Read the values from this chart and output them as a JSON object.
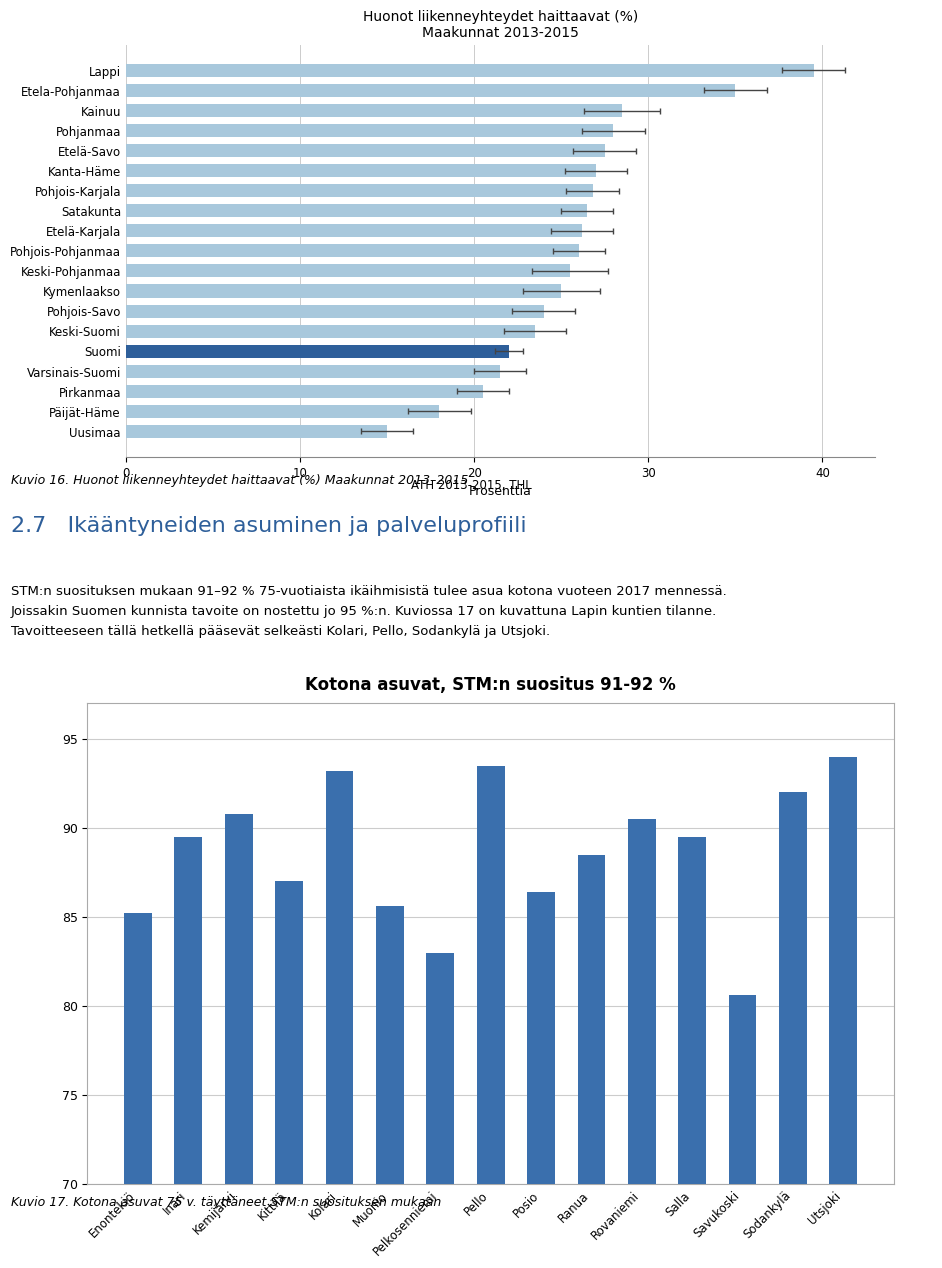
{
  "chart1": {
    "title": "Huonot liikenneyhteydet haittaavat (%)\nMaakunnat 2013-2015",
    "categories": [
      "Lappi",
      "Etela-Pohjanmaa",
      "Kainuu",
      "Pohjanmaa",
      "Etelä-Savo",
      "Kanta-Häme",
      "Pohjois-Karjala",
      "Satakunta",
      "Etelä-Karjala",
      "Pohjois-Pohjanmaa",
      "Keski-Pohjanmaa",
      "Kymenlaakso",
      "Pohjois-Savo",
      "Keski-Suomi",
      "Suomi",
      "Varsinais-Suomi",
      "Pirkanmaa",
      "Päijät-Häme",
      "Uusimaa"
    ],
    "values": [
      39.5,
      35.0,
      28.5,
      28.0,
      27.5,
      27.0,
      26.8,
      26.5,
      26.2,
      26.0,
      25.5,
      25.0,
      24.0,
      23.5,
      22.0,
      21.5,
      20.5,
      18.0,
      15.0
    ],
    "errors": [
      1.8,
      1.8,
      2.2,
      1.8,
      1.8,
      1.8,
      1.5,
      1.5,
      1.8,
      1.5,
      2.2,
      2.2,
      1.8,
      1.8,
      0.8,
      1.5,
      1.5,
      1.8,
      1.5
    ],
    "bar_color_default": "#a8c8dc",
    "bar_color_highlight": "#2e5f9a",
    "highlight_index": 14,
    "xlabel": "Prosenttia",
    "source": "ATH 2013-2015, THL",
    "xlim": [
      0,
      43
    ],
    "xticks": [
      0,
      10,
      20,
      30,
      40
    ]
  },
  "caption1": "Kuvio 16. Huonot liikenneyhteydet haittaavat (%) Maakunnat 2013–2015",
  "section_title": "2.7   Ikääntyneiden asuminen ja palveluprofiili",
  "body_text": "STM:n suosituksen mukaan 91–92 % 75-vuotiaista ikäihmisistä tulee asua kotona vuoteen 2017 mennessä.\nJoissakin Suomen kunnista tavoite on nostettu jo 95 %:n. Kuviossa 17 on kuvattuna Lapin kuntien tilanne.\nTavoitteeseen tällä hetkellä pääsevät selkeästi Kolari, Pello, Sodankylä ja Utsjoki.",
  "chart2": {
    "title": "Kotona asuvat, STM:n suositus 91-92 %",
    "categories": [
      "Enontekiö",
      "Inari",
      "Kemijärvi",
      "Kittilä",
      "Kolari",
      "Muonio",
      "Pelkosenniemi",
      "Pello",
      "Posio",
      "Ranua",
      "Rovaniemi",
      "Salla",
      "Savukoski",
      "Sodankylä",
      "Utsjoki"
    ],
    "values": [
      85.2,
      89.5,
      90.8,
      87.0,
      93.2,
      85.6,
      83.0,
      93.5,
      86.4,
      88.5,
      90.5,
      89.5,
      80.6,
      92.0,
      94.0
    ],
    "bar_color": "#3a6fad",
    "ylim": [
      70,
      97
    ],
    "yticks": [
      70,
      75,
      80,
      85,
      90,
      95
    ]
  },
  "caption2": "Kuvio 17. Kotona asuvat 75 v. täyttäneet STM:n suosituksen mukaan"
}
